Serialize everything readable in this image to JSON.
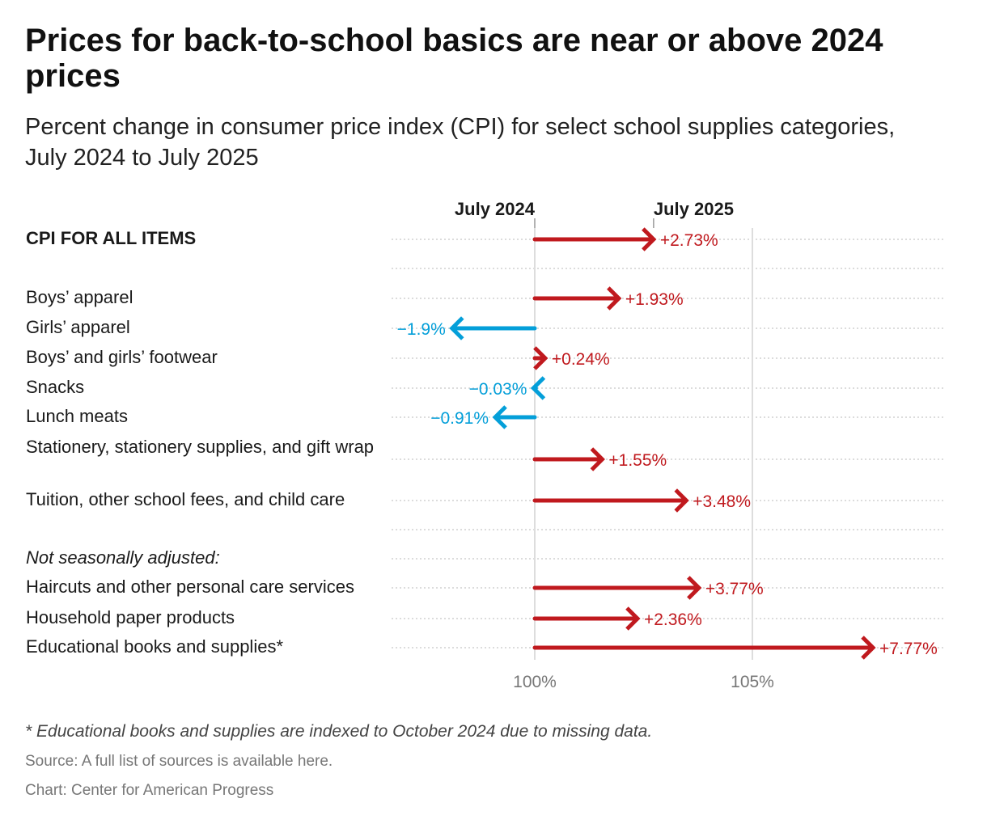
{
  "title": "Prices for back-to-school basics are near or above 2024 prices",
  "subtitle": "Percent change in consumer price index (CPI) for select school supplies categories, July 2024 to July 2025",
  "footnote": "* Educational books and supplies are indexed to October 2024 due to missing data.",
  "source": "Source: A full list of sources is available here.",
  "credit": "Chart: Center for American Progress",
  "colors": {
    "increase": "#c0191e",
    "decrease": "#049fd9",
    "grid": "#dddddd"
  },
  "chart_data": {
    "type": "arrow",
    "title": "Prices for back-to-school basics are near or above 2024 prices",
    "subtitle": "Percent change in consumer price index (CPI) for select school supplies categories, July 2024 to July 2025",
    "start_label": "July 2024",
    "end_label": "July 2025",
    "xlim": [
      96.7,
      108.7
    ],
    "xticks": [
      100,
      105
    ],
    "xtick_labels": [
      "100%",
      "105%"
    ],
    "grid": true,
    "rows": [
      {
        "label": "CPI FOR ALL ITEMS",
        "style": "bold",
        "change": 2.73,
        "value_label": "+2.73%"
      },
      {
        "label": "",
        "style": "spacer",
        "change": null,
        "value_label": ""
      },
      {
        "label": "Boys’ apparel",
        "style": "normal",
        "change": 1.93,
        "value_label": "+1.93%"
      },
      {
        "label": "Girls’ apparel",
        "style": "normal",
        "change": -1.9,
        "value_label": "−1.9%"
      },
      {
        "label": "Boys’ and girls’ footwear",
        "style": "normal",
        "change": 0.24,
        "value_label": "+0.24%"
      },
      {
        "label": "Snacks",
        "style": "normal",
        "change": -0.03,
        "value_label": "−0.03%"
      },
      {
        "label": "Lunch meats",
        "style": "normal",
        "change": -0.91,
        "value_label": "−0.91%"
      },
      {
        "label": "Stationery, stationery supplies, and gift wrap",
        "style": "normal",
        "change": 1.55,
        "value_label": "+1.55%"
      },
      {
        "label": "Tuition, other school fees, and child care",
        "style": "normal",
        "change": 3.48,
        "value_label": "+3.48%"
      },
      {
        "label": "",
        "style": "spacer",
        "change": null,
        "value_label": ""
      },
      {
        "label": "Not seasonally adjusted:",
        "style": "italic",
        "change": null,
        "value_label": ""
      },
      {
        "label": "Haircuts and other personal care services",
        "style": "normal",
        "change": 3.77,
        "value_label": "+3.77%"
      },
      {
        "label": "Household paper products",
        "style": "normal",
        "change": 2.36,
        "value_label": "+2.36%"
      },
      {
        "label": "Educational books and supplies*",
        "style": "normal",
        "change": 7.77,
        "value_label": "+7.77%"
      }
    ]
  }
}
